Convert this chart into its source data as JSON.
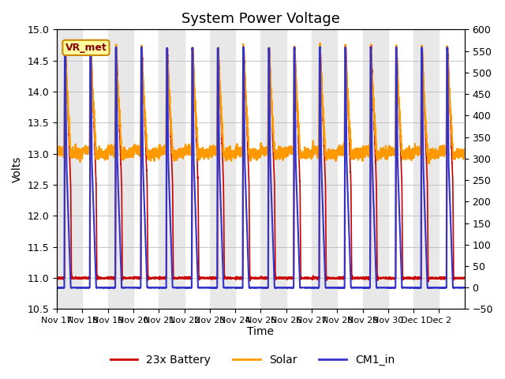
{
  "title": "System Power Voltage",
  "ylabel_left": "Volts",
  "xlabel": "Time",
  "ylim_left": [
    10.5,
    15.0
  ],
  "ylim_right": [
    -50,
    600
  ],
  "yticks_left": [
    10.5,
    11.0,
    11.5,
    12.0,
    12.5,
    13.0,
    13.5,
    14.0,
    14.5,
    15.0
  ],
  "yticks_right": [
    -50,
    0,
    50,
    100,
    150,
    200,
    250,
    300,
    350,
    400,
    450,
    500,
    550,
    600
  ],
  "xtick_labels": [
    "Nov 17",
    "Nov 18",
    "Nov 19",
    "Nov 20",
    "Nov 21",
    "Nov 22",
    "Nov 23",
    "Nov 24",
    "Nov 25",
    "Nov 26",
    "Nov 27",
    "Nov 28",
    "Nov 29",
    "Nov 30",
    "Dec 1",
    "Dec 2"
  ],
  "vr_met_label": "VR_met",
  "legend": [
    "23x Battery",
    "Solar",
    "CM1_in"
  ],
  "line_colors": [
    "#cc0000",
    "#ff9900",
    "#3333cc"
  ],
  "band_color": "#e8e8e8",
  "title_fontsize": 13,
  "axis_fontsize": 10,
  "tick_fontsize": 9,
  "legend_fontsize": 10,
  "days": 16
}
